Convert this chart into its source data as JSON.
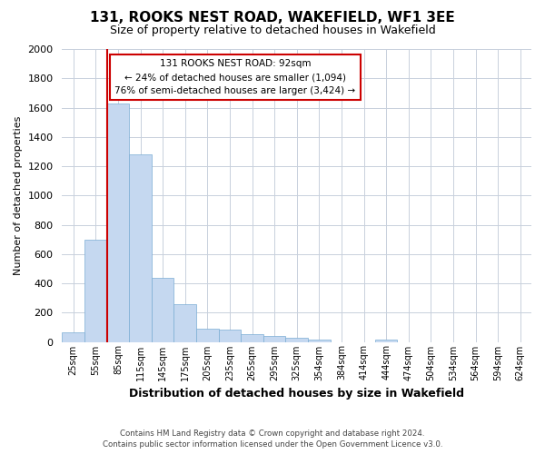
{
  "title": "131, ROOKS NEST ROAD, WAKEFIELD, WF1 3EE",
  "subtitle": "Size of property relative to detached houses in Wakefield",
  "xlabel": "Distribution of detached houses by size in Wakefield",
  "ylabel": "Number of detached properties",
  "categories": [
    "25sqm",
    "55sqm",
    "85sqm",
    "115sqm",
    "145sqm",
    "175sqm",
    "205sqm",
    "235sqm",
    "265sqm",
    "295sqm",
    "325sqm",
    "354sqm",
    "384sqm",
    "414sqm",
    "444sqm",
    "474sqm",
    "504sqm",
    "534sqm",
    "564sqm",
    "594sqm",
    "624sqm"
  ],
  "values": [
    65,
    695,
    1630,
    1280,
    435,
    255,
    90,
    85,
    50,
    38,
    28,
    18,
    0,
    0,
    18,
    0,
    0,
    0,
    0,
    0,
    0
  ],
  "bar_color": "#c5d8f0",
  "bar_edge_color": "#7aadd4",
  "ylim": [
    0,
    2000
  ],
  "yticks": [
    0,
    200,
    400,
    600,
    800,
    1000,
    1200,
    1400,
    1600,
    1800,
    2000
  ],
  "annotation_text": "131 ROOKS NEST ROAD: 92sqm\n← 24% of detached houses are smaller (1,094)\n76% of semi-detached houses are larger (3,424) →",
  "footer_line1": "Contains HM Land Registry data © Crown copyright and database right 2024.",
  "footer_line2": "Contains public sector information licensed under the Open Government Licence v3.0.",
  "background_color": "#ffffff",
  "grid_color": "#c8d0dc",
  "annotation_box_color": "#cc0000",
  "property_line_color": "#cc0000",
  "title_fontsize": 11,
  "subtitle_fontsize": 9,
  "xlabel_fontsize": 9,
  "ylabel_fontsize": 8
}
